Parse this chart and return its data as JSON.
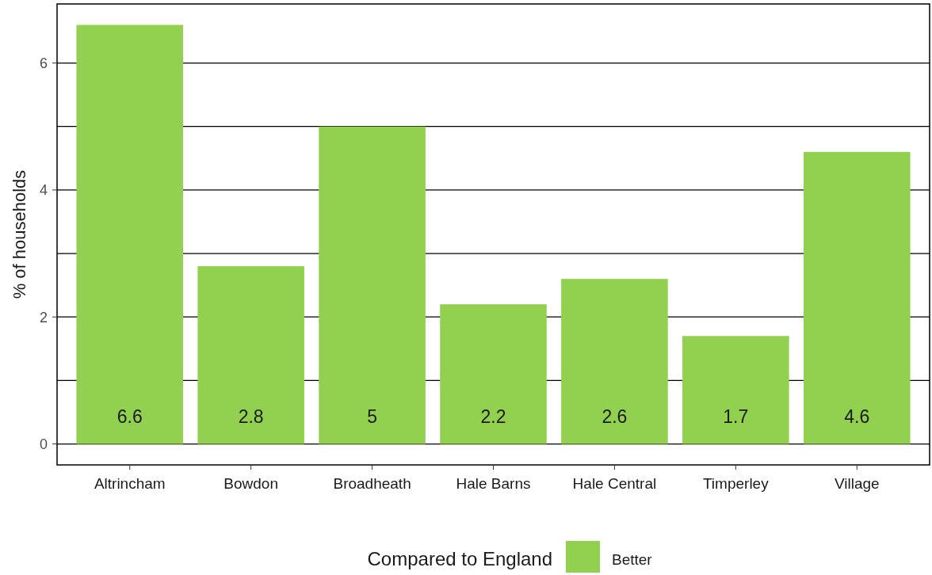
{
  "chart_data": {
    "type": "bar",
    "ylabel": "% of households",
    "categories": [
      "Altrincham",
      "Bowdon",
      "Broadheath",
      "Hale Barns",
      "Hale Central",
      "Timperley",
      "Village"
    ],
    "series": [
      {
        "name": "Better",
        "color": "#92d050",
        "values": [
          6.6,
          2.8,
          5,
          2.2,
          2.6,
          1.7,
          4.6
        ]
      }
    ],
    "ylim": [
      -0.33,
      6.93
    ],
    "yticks": [
      0,
      {
        "value": 1,
        "label": null
      },
      2,
      {
        "value": 3,
        "label": null
      },
      4,
      {
        "value": 5,
        "label": null
      },
      6
    ],
    "grid": "y",
    "data_labels": true,
    "legend": "bottom",
    "legend_title": "Compared to England"
  }
}
